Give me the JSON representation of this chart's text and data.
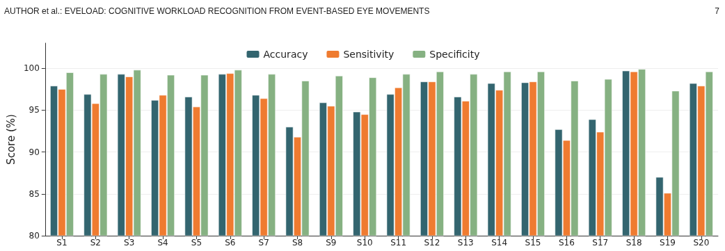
{
  "chart_data": {
    "type": "bar",
    "ylabel": "Score (%)",
    "annotations": [
      "AUTHOR et al.: EVELOAD: COGNITIVE WORKLOAD RECOGNITION FROM EVENT-BASED EYE MOVEMENTS",
      "7"
    ],
    "categories": [
      "S1",
      "S2",
      "S3",
      "S4",
      "S5",
      "S6",
      "S7",
      "S8",
      "S9",
      "S10",
      "S11",
      "S12",
      "S13",
      "S14",
      "S15",
      "S16",
      "S17",
      "S18",
      "S19",
      "S20"
    ],
    "series": [
      {
        "name": "Accuracy",
        "color": "#33656f",
        "values": [
          97.9,
          96.9,
          99.3,
          96.2,
          96.6,
          99.3,
          96.8,
          93.0,
          95.9,
          94.8,
          96.9,
          98.4,
          96.6,
          98.2,
          98.3,
          92.7,
          93.9,
          99.7,
          87.0,
          98.2
        ]
      },
      {
        "name": "Sensitivity",
        "color": "#ef7b30",
        "values": [
          97.5,
          95.8,
          99.0,
          96.8,
          95.4,
          99.4,
          96.4,
          91.8,
          95.5,
          94.5,
          97.7,
          98.4,
          96.1,
          97.4,
          98.4,
          91.4,
          92.4,
          99.6,
          85.1,
          97.9
        ]
      },
      {
        "name": "Specificity",
        "color": "#86b182",
        "values": [
          99.5,
          99.3,
          99.8,
          99.2,
          99.2,
          99.8,
          99.3,
          98.5,
          99.1,
          98.9,
          99.3,
          99.6,
          99.3,
          99.6,
          99.6,
          98.5,
          98.7,
          99.9,
          97.3,
          99.6
        ]
      }
    ],
    "ylim": [
      80,
      103
    ],
    "yticks": [
      80,
      85,
      90,
      95,
      100
    ],
    "grid": "y",
    "legend": "top"
  }
}
